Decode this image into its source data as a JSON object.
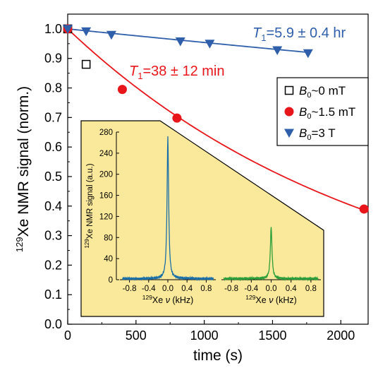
{
  "chart_data": {
    "type": "scatter",
    "xlabel": "time (s)",
    "ylabel": {
      "sup": "129",
      "text": "Xe NMR signal (norm.)"
    },
    "xlim": [
      0,
      2200
    ],
    "ylim": [
      0.0,
      1.05
    ],
    "xticks": [
      0,
      500,
      1000,
      1500,
      2000
    ],
    "yticks": [
      0.0,
      0.1,
      0.2,
      0.3,
      0.4,
      0.5,
      0.6,
      0.7,
      0.8,
      0.9,
      1.0
    ],
    "legend_position": "right",
    "series": [
      {
        "name": {
          "pre": "B",
          "sub": "0",
          "post": "~0 mT"
        },
        "marker": "open-square",
        "color": "#000000",
        "x": [
          0,
          135
        ],
        "y": [
          1.0,
          0.88
        ]
      },
      {
        "name": {
          "pre": "B",
          "sub": "0",
          "post": "~1.5 mT"
        },
        "marker": "circle",
        "color": "#e8161b",
        "x": [
          0,
          400,
          800,
          2170
        ],
        "y": [
          1.0,
          0.795,
          0.698,
          0.39
        ],
        "fit": {
          "model": "exp",
          "T1_s": 2280,
          "x_end": 2200
        },
        "annotation": {
          "pre": "T",
          "sub": "1",
          "post": "=38 ± 12 min",
          "color": "#e8161b"
        }
      },
      {
        "name": {
          "pre": "B",
          "sub": "0",
          "post": "=3 T"
        },
        "marker": "triangle-down",
        "color": "#2f5fab",
        "x": [
          0,
          135,
          320,
          825,
          1040,
          1535,
          1760
        ],
        "y": [
          1.0,
          0.992,
          0.98,
          0.958,
          0.95,
          0.928,
          0.918
        ],
        "fit": {
          "model": "exp",
          "T1_s": 21240,
          "x_end": 1760
        },
        "annotation": {
          "pre": "T",
          "sub": "1",
          "post": "=5.9 ± 0.4 hr",
          "color": "#2f5fab"
        }
      }
    ],
    "inset": {
      "background": "#fbe99b",
      "ylabel": {
        "sup": "129",
        "text": "Xe NMR signal (a.u.)"
      },
      "ylim": [
        0,
        280
      ],
      "yticks": [
        0,
        40,
        80,
        120,
        160,
        200,
        240,
        280
      ],
      "panels": [
        {
          "xlabel": {
            "sup": "129",
            "text": "Xe ",
            "nu": "ν",
            "post": " (kHz)"
          },
          "xlim": [
            -1.0,
            1.0
          ],
          "xticks": [
            -0.8,
            -0.4,
            0.0,
            0.4,
            0.8
          ],
          "xticklabels": [
            "-0.8",
            "-0.4",
            "0.0",
            "0.4",
            "0.8"
          ],
          "color": "#1a6fa8",
          "peak": {
            "center": 0.0,
            "height": 268,
            "width_khz": 0.04,
            "baseline": 2
          }
        },
        {
          "xlabel": {
            "sup": "129",
            "text": "Xe ",
            "nu": "ν",
            "post": " (kHz)"
          },
          "xlim": [
            -1.0,
            1.0
          ],
          "xticks": [
            -0.8,
            -0.4,
            0.0,
            0.4,
            0.8
          ],
          "xticklabels": [
            "-0.8",
            "-0.4",
            "0.0",
            "0.4",
            "0.8"
          ],
          "color": "#2a9e3a",
          "peak": {
            "center": 0.0,
            "height": 97,
            "width_khz": 0.04,
            "baseline": 2
          }
        }
      ]
    }
  }
}
